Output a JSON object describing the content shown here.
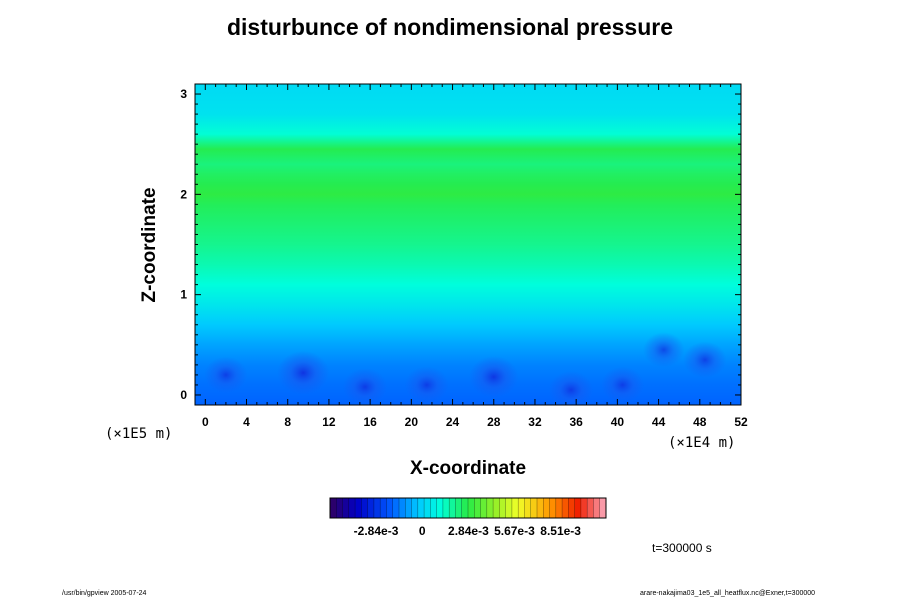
{
  "chart_data": {
    "type": "heatmap",
    "title": "disturbunce of nondimensional pressure",
    "xlabel": "X-coordinate",
    "ylabel": "Z-coordinate",
    "x_unit": "(×1E4 m)",
    "y_unit": "(×1E5 m)",
    "xlim": [
      -1,
      52
    ],
    "ylim": [
      -0.1,
      3.1
    ],
    "x_ticks": [
      0,
      4,
      8,
      12,
      16,
      20,
      24,
      28,
      32,
      36,
      40,
      44,
      48,
      52
    ],
    "x_tick_labels": [
      "0",
      "4",
      "8",
      "12",
      "16",
      "20",
      "24",
      "28",
      "32",
      "36",
      "40",
      "44",
      "48",
      "52"
    ],
    "y_ticks": [
      0,
      1,
      2,
      3
    ],
    "y_tick_labels": [
      "0",
      "1",
      "2",
      "3"
    ],
    "colorbar": {
      "range": [
        -0.00567,
        0.0113
      ],
      "tick_values": [
        -0.00284,
        0,
        0.00284,
        0.00567,
        0.00851
      ],
      "tick_labels": [
        "-2.84e-3",
        "0",
        "2.84e-3",
        "5.67e-3",
        "8.51e-3"
      ]
    },
    "z_profile": [
      {
        "z": -0.1,
        "value": -0.0018
      },
      {
        "z": 0.1,
        "value": -0.0016
      },
      {
        "z": 0.3,
        "value": -0.0013
      },
      {
        "z": 0.5,
        "value": -0.0008
      },
      {
        "z": 0.7,
        "value": -0.0002
      },
      {
        "z": 0.9,
        "value": 0.0005
      },
      {
        "z": 1.1,
        "value": 0.0011
      },
      {
        "z": 1.3,
        "value": 0.0016
      },
      {
        "z": 1.5,
        "value": 0.002
      },
      {
        "z": 1.7,
        "value": 0.0023
      },
      {
        "z": 1.9,
        "value": 0.0026
      },
      {
        "z": 2.0,
        "value": 0.0029
      },
      {
        "z": 2.1,
        "value": 0.0027
      },
      {
        "z": 2.2,
        "value": 0.0025
      },
      {
        "z": 2.3,
        "value": 0.0022
      },
      {
        "z": 2.45,
        "value": 0.0027
      },
      {
        "z": 2.6,
        "value": 0.0012
      },
      {
        "z": 2.8,
        "value": 0.0004
      },
      {
        "z": 3.1,
        "value": 0.0002
      }
    ],
    "lows": [
      {
        "x": 9.5,
        "z": 0.22,
        "value": -0.0038
      },
      {
        "x": 28,
        "z": 0.18,
        "value": -0.0034
      },
      {
        "x": 15.5,
        "z": 0.08,
        "value": -0.0026
      },
      {
        "x": 21.5,
        "z": 0.1,
        "value": -0.0025
      },
      {
        "x": 35.5,
        "z": 0.05,
        "value": -0.0026
      },
      {
        "x": 48.5,
        "z": 0.35,
        "value": -0.0024
      },
      {
        "x": 44.5,
        "z": 0.45,
        "value": -0.0021
      },
      {
        "x": 2.0,
        "z": 0.2,
        "value": -0.0024
      },
      {
        "x": 40.5,
        "z": 0.1,
        "value": -0.0024
      }
    ]
  },
  "time_label": "t=300000 s",
  "footer_left": "/usr/bin/gpview 2005-07-24",
  "footer_right": "arare-nakajima03_1e5_all_heatflux.nc@Exner,t=300000"
}
